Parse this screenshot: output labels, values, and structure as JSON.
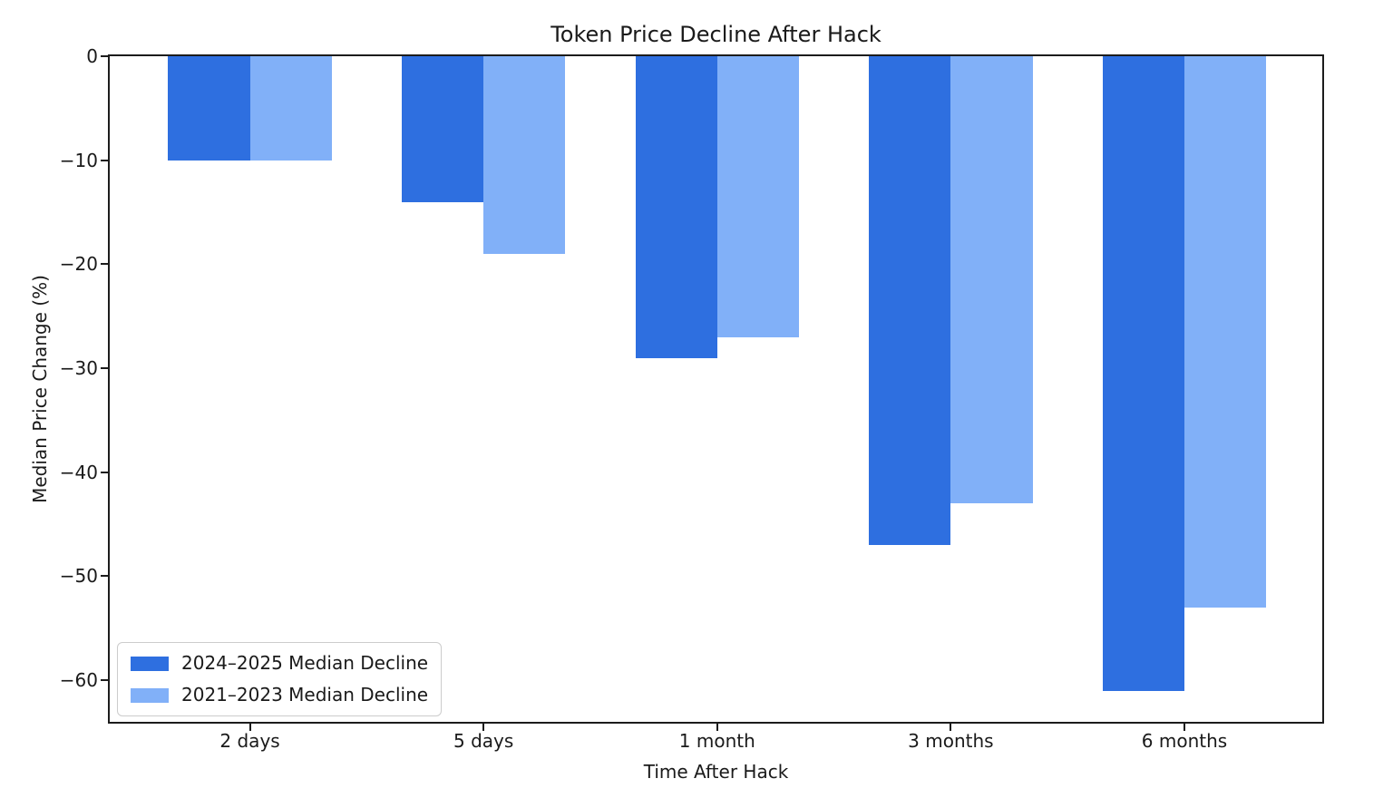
{
  "figure": {
    "background": "#ffffff",
    "text_color": "#1a1a1a",
    "spine_color": "#1c1c1c"
  },
  "chart_data": {
    "type": "bar",
    "title": "Token Price Decline After Hack",
    "xlabel": "Time After Hack",
    "ylabel": "Median Price Change (%)",
    "categories": [
      "2 days",
      "5 days",
      "1 month",
      "3 months",
      "6 months"
    ],
    "series": [
      {
        "name": "2024–2025 Median Decline",
        "color": "#2e6fe0",
        "values": [
          -10,
          -14,
          -29,
          -47,
          -61
        ]
      },
      {
        "name": "2021–2023 Median Decline",
        "color": "#81b0f8",
        "values": [
          -10,
          -19,
          -27,
          -43,
          -53
        ]
      }
    ],
    "yticks": [
      {
        "value": 0,
        "label": "0"
      },
      {
        "value": -10,
        "label": "−10"
      },
      {
        "value": -20,
        "label": "−20"
      },
      {
        "value": -30,
        "label": "−30"
      },
      {
        "value": -40,
        "label": "−40"
      },
      {
        "value": -50,
        "label": "−50"
      },
      {
        "value": -60,
        "label": "−60"
      }
    ],
    "ylim": [
      -64,
      0
    ],
    "xlim": [
      -0.6,
      4.59
    ],
    "bar_width": 0.35,
    "grid": false,
    "legend_position": "lower left"
  }
}
